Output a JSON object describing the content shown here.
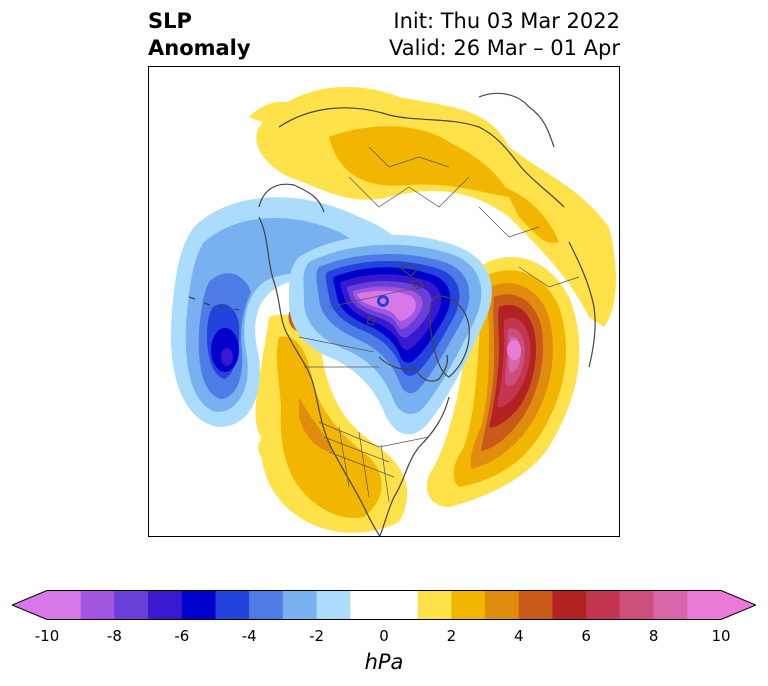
{
  "title": {
    "left_line1": "SLP",
    "left_line2": "Anomaly",
    "right_line1": "Init: Thu 03 Mar 2022",
    "right_line2": "Valid: 26 Mar – 01 Apr"
  },
  "colorbar": {
    "unit_label": "hPa",
    "min": -10,
    "max": 10,
    "ticks": [
      "-10",
      "-8",
      "-6",
      "-4",
      "-2",
      "0",
      "2",
      "4",
      "6",
      "8",
      "10"
    ],
    "tick_values": [
      -10,
      -8,
      -6,
      -4,
      -2,
      0,
      2,
      4,
      6,
      8,
      10
    ],
    "bin_edges": [
      -10,
      -9,
      -8,
      -7,
      -6,
      -5,
      -4,
      -3,
      -2,
      -1,
      1,
      2,
      3,
      4,
      5,
      6,
      7,
      8,
      9,
      10
    ],
    "colors": [
      "#d877e8",
      "#a155e0",
      "#6a3ed8",
      "#3a18d0",
      "#0000cc",
      "#2244dd",
      "#4e7ce6",
      "#79b0f0",
      "#abdcfb",
      "#ffffff",
      "#ffe14a",
      "#f2b600",
      "#e08c0e",
      "#c85a1a",
      "#b22222",
      "#c2364f",
      "#cc4e7a",
      "#d866a8",
      "#ea7ad8"
    ],
    "extend_low_color": "#d877e8",
    "extend_high_color": "#ea7ad8"
  },
  "map": {
    "projection": "north-polar-stereographic",
    "field": "SLP anomaly",
    "features": [
      {
        "name": "low-center-arctic",
        "value_hpa": -10
      },
      {
        "name": "low-center-north-pacific",
        "value_hpa": -6
      },
      {
        "name": "high-center-north-atlantic",
        "value_hpa": 10
      }
    ]
  }
}
